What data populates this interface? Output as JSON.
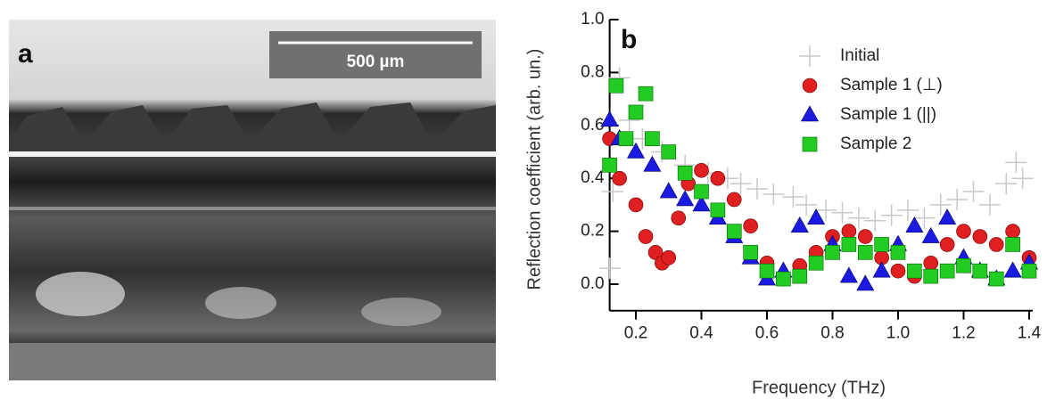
{
  "panel_a": {
    "label": "a",
    "scale_bar": "500 µm"
  },
  "chart_data": {
    "type": "scatter",
    "panel_label": "b",
    "xlabel": "Frequency (THz)",
    "ylabel": "Reflection coefficient (arb. un.)",
    "xlim": [
      0.12,
      1.4
    ],
    "ylim": [
      -0.1,
      1.0
    ],
    "xticks": [
      0.2,
      0.4,
      0.6,
      0.8,
      {
        "value": 1.0,
        "label": "1.0"
      },
      1.2,
      1.4
    ],
    "yticks": [
      {
        "value": 0,
        "label": "0.0"
      },
      0.2,
      0.4,
      0.6,
      0.8,
      {
        "value": 1.0,
        "label": "1.0"
      }
    ],
    "legend": "upper right",
    "series": [
      {
        "name": "Initial",
        "color": "#c8c8c8",
        "marker": "plus",
        "x": [
          0.12,
          0.13,
          0.15,
          0.18,
          0.22,
          0.28,
          0.35,
          0.42,
          0.48,
          0.52,
          0.57,
          0.62,
          0.68,
          0.72,
          0.78,
          0.83,
          0.88,
          0.93,
          0.98,
          1.03,
          1.08,
          1.13,
          1.18,
          1.23,
          1.28,
          1.33,
          1.36,
          1.38
        ],
        "values": [
          0.06,
          0.35,
          0.78,
          0.62,
          0.55,
          0.5,
          0.45,
          0.42,
          0.4,
          0.38,
          0.36,
          0.34,
          0.33,
          0.3,
          0.28,
          0.27,
          0.25,
          0.24,
          0.26,
          0.28,
          0.25,
          0.3,
          0.32,
          0.35,
          0.3,
          0.38,
          0.46,
          0.4
        ]
      },
      {
        "name": "Sample 1 (⊥)",
        "color": "#e02020",
        "marker": "circle",
        "x": [
          0.12,
          0.15,
          0.2,
          0.23,
          0.26,
          0.28,
          0.3,
          0.33,
          0.36,
          0.4,
          0.45,
          0.5,
          0.55,
          0.6,
          0.65,
          0.7,
          0.75,
          0.8,
          0.85,
          0.9,
          0.95,
          1.0,
          1.05,
          1.1,
          1.15,
          1.2,
          1.25,
          1.3,
          1.35,
          1.4
        ],
        "values": [
          0.55,
          0.4,
          0.3,
          0.18,
          0.12,
          0.08,
          0.1,
          0.25,
          0.38,
          0.43,
          0.4,
          0.32,
          0.22,
          0.08,
          0.02,
          0.07,
          0.12,
          0.18,
          0.2,
          0.18,
          0.1,
          0.05,
          0.03,
          0.08,
          0.15,
          0.2,
          0.18,
          0.15,
          0.2,
          0.1
        ]
      },
      {
        "name": "Sample 1 (||)",
        "color": "#1a1ae0",
        "marker": "triangle",
        "x": [
          0.12,
          0.15,
          0.2,
          0.25,
          0.3,
          0.35,
          0.4,
          0.45,
          0.5,
          0.55,
          0.6,
          0.65,
          0.7,
          0.75,
          0.8,
          0.85,
          0.9,
          0.95,
          1.0,
          1.05,
          1.1,
          1.15,
          1.2,
          1.25,
          1.3,
          1.35,
          1.4
        ],
        "values": [
          0.62,
          0.55,
          0.5,
          0.45,
          0.35,
          0.32,
          0.3,
          0.25,
          0.18,
          0.1,
          0.02,
          0.05,
          0.22,
          0.25,
          0.15,
          0.03,
          0.0,
          0.05,
          0.15,
          0.22,
          0.18,
          0.25,
          0.1,
          0.05,
          0.02,
          0.05,
          0.08
        ]
      },
      {
        "name": "Sample 2",
        "color": "#22cc22",
        "marker": "square",
        "x": [
          0.12,
          0.14,
          0.17,
          0.2,
          0.23,
          0.25,
          0.3,
          0.35,
          0.4,
          0.45,
          0.5,
          0.55,
          0.6,
          0.65,
          0.7,
          0.75,
          0.8,
          0.85,
          0.9,
          0.95,
          1.0,
          1.05,
          1.1,
          1.15,
          1.2,
          1.25,
          1.3,
          1.35,
          1.4
        ],
        "values": [
          0.45,
          0.75,
          0.55,
          0.65,
          0.72,
          0.55,
          0.5,
          0.42,
          0.35,
          0.28,
          0.2,
          0.12,
          0.05,
          0.02,
          0.03,
          0.08,
          0.12,
          0.15,
          0.12,
          0.15,
          0.12,
          0.05,
          0.03,
          0.05,
          0.07,
          0.05,
          0.02,
          0.15,
          0.05
        ]
      }
    ]
  }
}
